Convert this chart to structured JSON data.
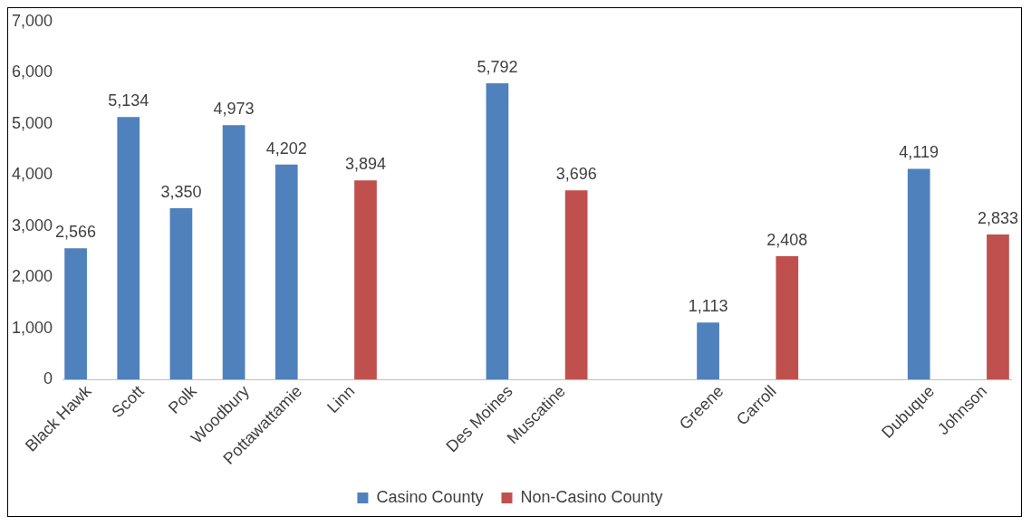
{
  "chart_data": {
    "type": "bar",
    "categories": [
      "Black Hawk",
      "Scott",
      "Polk",
      "Woodbury",
      "Pottawattamie",
      "Linn",
      null,
      null,
      "Des Moines",
      "Muscatine",
      null,
      null,
      "Greene",
      "Carroll",
      null,
      null,
      "Dubuque",
      "Johnson"
    ],
    "series": [
      {
        "name": "Casino County",
        "color": "#4f81bd",
        "values": [
          2566,
          5134,
          3350,
          4973,
          4202,
          null,
          null,
          null,
          5792,
          null,
          null,
          null,
          1113,
          null,
          null,
          null,
          4119,
          null
        ],
        "value_labels": [
          "2,566",
          "5,134",
          "3,350",
          "4,973",
          "4,202",
          null,
          null,
          null,
          "5,792",
          null,
          null,
          null,
          "1,113",
          null,
          null,
          null,
          "4,119",
          null
        ]
      },
      {
        "name": "Non-Casino County",
        "color": "#c0504d",
        "values": [
          null,
          null,
          null,
          null,
          null,
          3894,
          null,
          null,
          null,
          3696,
          null,
          null,
          null,
          2408,
          null,
          null,
          null,
          2833
        ],
        "value_labels": [
          null,
          null,
          null,
          null,
          null,
          "3,894",
          null,
          null,
          null,
          "3,696",
          null,
          null,
          null,
          "2,408",
          null,
          null,
          null,
          "2,833"
        ]
      }
    ],
    "ylim": [
      0,
      7000
    ],
    "yticks": [
      0,
      {
        "value": 1000,
        "label": "1,000"
      },
      {
        "value": 2000,
        "label": "2,000"
      },
      {
        "value": 3000,
        "label": "3,000"
      },
      {
        "value": 4000,
        "label": "4,000"
      },
      {
        "value": 5000,
        "label": "5,000"
      },
      {
        "value": 6000,
        "label": "6,000"
      },
      {
        "value": 7000,
        "label": "7,000"
      }
    ],
    "grid": false,
    "legend": "bottom"
  }
}
